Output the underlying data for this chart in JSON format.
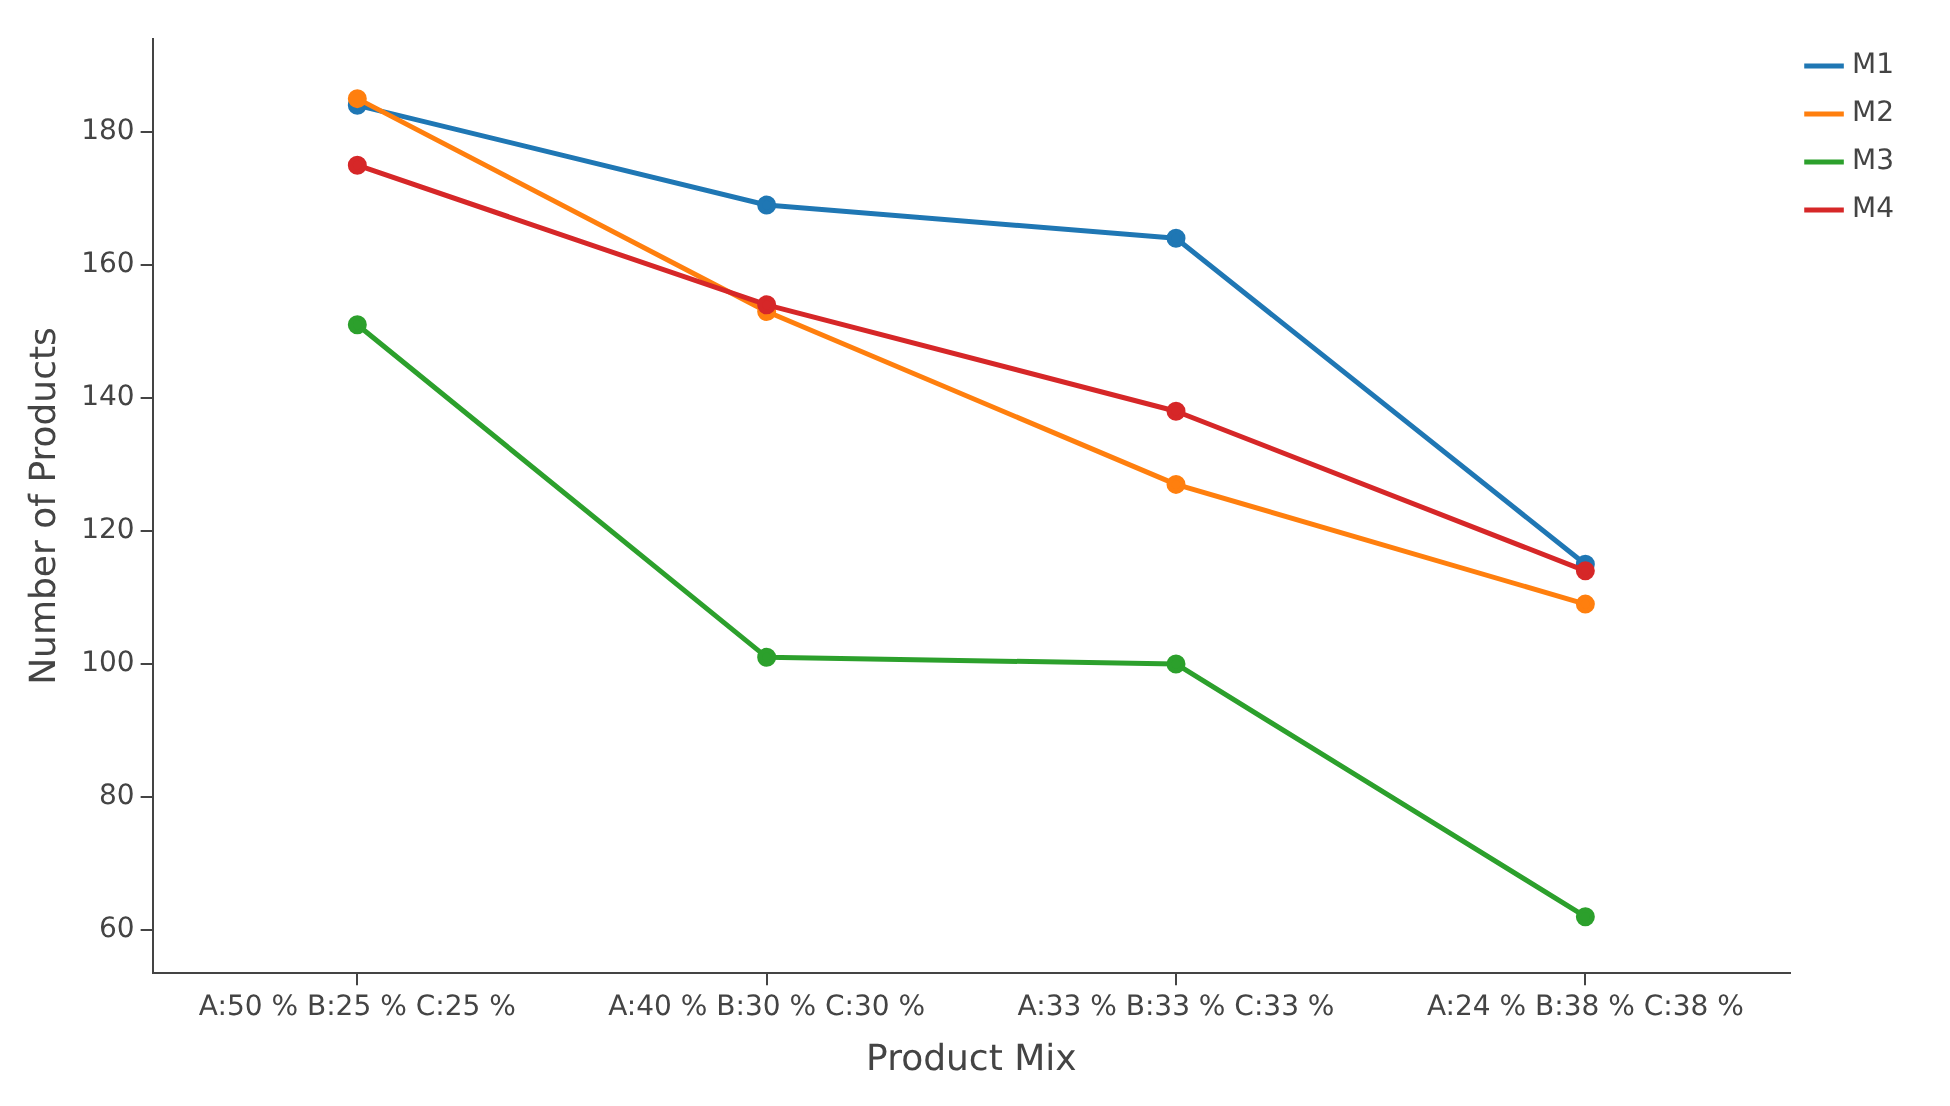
{
  "chart_data": {
    "type": "line",
    "xlabel": "Product Mix",
    "ylabel": "Number of Products",
    "categories": [
      "A:50 % B:25 % C:25 %",
      "A:40 % B:30 % C:30 %",
      "A:33 % B:33 % C:33 %",
      "A:24 % B:38 % C:38 %"
    ],
    "series": [
      {
        "name": "M1",
        "color": "#1f77b4",
        "values": [
          184,
          169,
          164,
          115
        ]
      },
      {
        "name": "M2",
        "color": "#ff7f0e",
        "values": [
          185,
          153,
          127,
          109
        ]
      },
      {
        "name": "M3",
        "color": "#2ca02c",
        "values": [
          151,
          101,
          100,
          62
        ]
      },
      {
        "name": "M4",
        "color": "#d62728",
        "values": [
          175,
          154,
          138,
          114
        ]
      }
    ],
    "ylim": [
      53.5,
      194
    ],
    "yticks": [
      60,
      80,
      100,
      120,
      140,
      160,
      180
    ],
    "grid": false,
    "legend": "top right",
    "marker": "circle",
    "line_style": "solid"
  }
}
